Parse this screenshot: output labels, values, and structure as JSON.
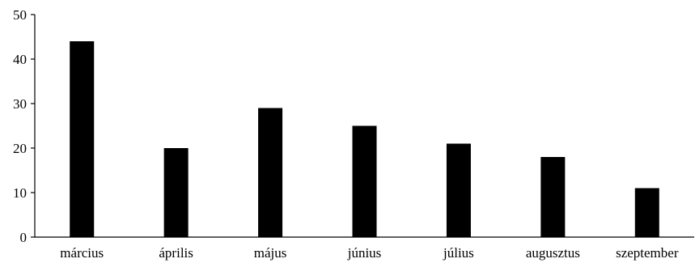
{
  "chart_data": {
    "type": "bar",
    "categories": [
      "március",
      "április",
      "május",
      "június",
      "július",
      "augusztus",
      "szeptember"
    ],
    "values": [
      44,
      20,
      29,
      25,
      21,
      18,
      11
    ],
    "yticks": [
      0,
      10,
      20,
      30,
      40,
      50
    ],
    "ylim": [
      0,
      50
    ],
    "title": "",
    "xlabel": "",
    "ylabel": "",
    "grid": false,
    "bar_color": "#000000",
    "axis_color": "#000000"
  }
}
